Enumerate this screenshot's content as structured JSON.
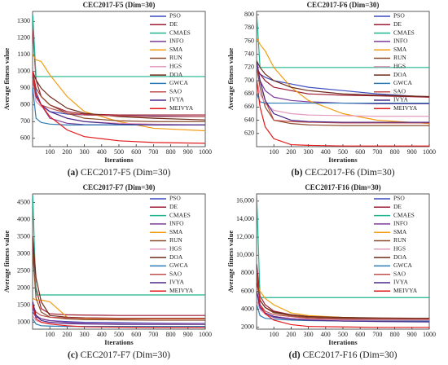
{
  "chart_data": [
    {
      "type": "line",
      "title": "CEC2017-F5 (Dim=30)",
      "xlabel": "Iterations",
      "ylabel": "Average fitness value",
      "caption_label": "(a)",
      "caption": "CEC2017-F5 (Dim=30)",
      "x": [
        1,
        20,
        50,
        100,
        200,
        300,
        500,
        700,
        1000
      ],
      "xlim": [
        0,
        1000
      ],
      "xticks": [
        100,
        200,
        300,
        400,
        500,
        600,
        700,
        800,
        900,
        1000
      ],
      "ylim": [
        550,
        1360
      ],
      "yticks": [
        600,
        700,
        800,
        900,
        1000,
        1100,
        1200,
        1300
      ],
      "series": [
        {
          "name": "PSO",
          "color": "#3b4cc0",
          "values": [
            1000,
            880,
            800,
            760,
            745,
            740,
            735,
            733,
            730
          ]
        },
        {
          "name": "DE",
          "color": "#9e1b32",
          "values": [
            1250,
            950,
            850,
            800,
            760,
            745,
            740,
            740,
            740
          ]
        },
        {
          "name": "CMAES",
          "color": "#1fb58f",
          "values": [
            1340,
            970,
            970,
            970,
            970,
            970,
            970,
            970,
            970
          ]
        },
        {
          "name": "INFO",
          "color": "#7d3c98",
          "values": [
            1000,
            850,
            800,
            720,
            690,
            682,
            680,
            680,
            680
          ]
        },
        {
          "name": "SMA",
          "color": "#f39c12",
          "values": [
            1100,
            1070,
            1060,
            980,
            850,
            760,
            700,
            660,
            645
          ]
        },
        {
          "name": "RUN",
          "color": "#8b4a2b",
          "values": [
            1000,
            900,
            850,
            800,
            750,
            720,
            705,
            700,
            700
          ]
        },
        {
          "name": "HGS",
          "color": "#e39abf",
          "values": [
            950,
            820,
            790,
            760,
            720,
            700,
            690,
            685,
            680
          ]
        },
        {
          "name": "DOA",
          "color": "#6e2c1c",
          "values": [
            1000,
            950,
            900,
            850,
            780,
            750,
            730,
            720,
            710
          ]
        },
        {
          "name": "GWCA",
          "color": "#2c7bb6",
          "values": [
            900,
            720,
            695,
            685,
            680,
            680,
            680,
            680,
            680
          ]
        },
        {
          "name": "SAO",
          "color": "#c0504d",
          "values": [
            950,
            850,
            800,
            780,
            750,
            740,
            735,
            730,
            730
          ]
        },
        {
          "name": "IVYA",
          "color": "#4b2a8a",
          "values": [
            1000,
            850,
            800,
            760,
            720,
            700,
            685,
            680,
            680
          ]
        },
        {
          "name": "MEIVYA",
          "color": "#e31a1c",
          "values": [
            1000,
            860,
            800,
            730,
            650,
            610,
            585,
            575,
            570
          ]
        }
      ]
    },
    {
      "type": "line",
      "title": "CEC2017-F6 (Dim=30)",
      "xlabel": "Iterations",
      "ylabel": "Average fitness value",
      "caption_label": "(b)",
      "caption": "CEC2017-F6 (Dim=30)",
      "x": [
        1,
        20,
        50,
        100,
        200,
        300,
        500,
        700,
        1000
      ],
      "xlim": [
        0,
        1000
      ],
      "xticks": [
        100,
        200,
        300,
        400,
        500,
        600,
        700,
        800,
        900,
        1000
      ],
      "ylim": [
        600,
        805
      ],
      "yticks": [
        620,
        640,
        660,
        680,
        700,
        720,
        740,
        760,
        780,
        800
      ],
      "series": [
        {
          "name": "PSO",
          "color": "#3b4cc0",
          "values": [
            720,
            710,
            705,
            700,
            695,
            690,
            685,
            680,
            675
          ]
        },
        {
          "name": "DE",
          "color": "#9e1b32",
          "values": [
            720,
            710,
            700,
            690,
            685,
            680,
            678,
            677,
            675
          ]
        },
        {
          "name": "CMAES",
          "color": "#1fb58f",
          "values": [
            800,
            720,
            720,
            720,
            720,
            720,
            720,
            720,
            720
          ]
        },
        {
          "name": "INFO",
          "color": "#7d3c98",
          "values": [
            720,
            700,
            685,
            675,
            670,
            668,
            666,
            665,
            665
          ]
        },
        {
          "name": "SMA",
          "color": "#f39c12",
          "values": [
            765,
            755,
            745,
            720,
            690,
            670,
            650,
            640,
            635
          ]
        },
        {
          "name": "RUN",
          "color": "#8b4a2b",
          "values": [
            720,
            690,
            660,
            640,
            635,
            633,
            632,
            632,
            632
          ]
        },
        {
          "name": "HGS",
          "color": "#e39abf",
          "values": [
            700,
            680,
            665,
            655,
            650,
            648,
            647,
            646,
            646
          ]
        },
        {
          "name": "DOA",
          "color": "#6e2c1c",
          "values": [
            730,
            720,
            710,
            700,
            690,
            685,
            680,
            678,
            676
          ]
        },
        {
          "name": "GWCA",
          "color": "#2c7bb6",
          "values": [
            680,
            668,
            666,
            666,
            666,
            666,
            666,
            666,
            666
          ]
        },
        {
          "name": "SAO",
          "color": "#c0504d",
          "values": [
            720,
            700,
            670,
            640,
            638,
            637,
            636,
            636,
            636
          ]
        },
        {
          "name": "IVYA",
          "color": "#4b2a8a",
          "values": [
            730,
            700,
            670,
            650,
            640,
            638,
            637,
            637,
            637
          ]
        },
        {
          "name": "MEIVYA",
          "color": "#e31a1c",
          "values": [
            700,
            660,
            630,
            612,
            603,
            602,
            601,
            601,
            601
          ]
        }
      ]
    },
    {
      "type": "line",
      "title": "CEC2017-F7 (Dim=30)",
      "xlabel": "Iterations",
      "ylabel": "Average fitness value",
      "caption_label": "(c)",
      "caption": "CEC2017-F7 (Dim=30)",
      "x": [
        1,
        20,
        50,
        100,
        200,
        300,
        500,
        700,
        1000
      ],
      "xlim": [
        0,
        1000
      ],
      "xticks": [
        100,
        200,
        300,
        400,
        500,
        600,
        700,
        800,
        900,
        1000
      ],
      "ylim": [
        800,
        4750
      ],
      "yticks": [
        1000,
        1500,
        2000,
        2500,
        3000,
        3500,
        4000,
        4500
      ],
      "series": [
        {
          "name": "PSO",
          "color": "#3b4cc0",
          "values": [
            1300,
            1150,
            1100,
            1050,
            1020,
            1000,
            990,
            980,
            970
          ]
        },
        {
          "name": "DE",
          "color": "#9e1b32",
          "values": [
            3300,
            2000,
            1400,
            1250,
            1220,
            1210,
            1200,
            1200,
            1200
          ]
        },
        {
          "name": "CMAES",
          "color": "#1fb58f",
          "values": [
            4700,
            1800,
            1800,
            1800,
            1800,
            1800,
            1800,
            1800,
            1800
          ]
        },
        {
          "name": "INFO",
          "color": "#7d3c98",
          "values": [
            1400,
            1200,
            1100,
            1050,
            1000,
            980,
            960,
            950,
            950
          ]
        },
        {
          "name": "SMA",
          "color": "#f39c12",
          "values": [
            1700,
            1650,
            1650,
            1600,
            1150,
            1100,
            1100,
            1100,
            1100
          ]
        },
        {
          "name": "RUN",
          "color": "#8b4a2b",
          "values": [
            3000,
            1700,
            1300,
            1150,
            1100,
            1080,
            1070,
            1060,
            1060
          ]
        },
        {
          "name": "HGS",
          "color": "#e39abf",
          "values": [
            1200,
            1050,
            1000,
            980,
            970,
            960,
            960,
            960,
            960
          ]
        },
        {
          "name": "DOA",
          "color": "#6e2c1c",
          "values": [
            3500,
            2300,
            1600,
            1200,
            1150,
            1130,
            1120,
            1120,
            1120
          ]
        },
        {
          "name": "GWCA",
          "color": "#2c7bb6",
          "values": [
            1100,
            950,
            900,
            890,
            880,
            880,
            880,
            880,
            880
          ]
        },
        {
          "name": "SAO",
          "color": "#c0504d",
          "values": [
            1500,
            1300,
            1200,
            1150,
            1130,
            1120,
            1110,
            1110,
            1110
          ]
        },
        {
          "name": "IVYA",
          "color": "#4b2a8a",
          "values": [
            1600,
            1200,
            1050,
            1000,
            960,
            950,
            940,
            940,
            940
          ]
        },
        {
          "name": "MEIVYA",
          "color": "#e31a1c",
          "values": [
            1500,
            1100,
            1000,
            950,
            900,
            870,
            860,
            850,
            850
          ]
        }
      ]
    },
    {
      "type": "line",
      "title": "CEC2017-F16 (Dim=30)",
      "xlabel": "Iterations",
      "ylabel": "Average fitness value",
      "caption_label": "(d)",
      "caption": "CEC2017-F16 (Dim=30)",
      "x": [
        1,
        20,
        50,
        100,
        200,
        300,
        500,
        700,
        1000
      ],
      "xlim": [
        0,
        1000
      ],
      "xticks": [
        100,
        200,
        300,
        400,
        500,
        600,
        700,
        800,
        900,
        1000
      ],
      "ylim": [
        1800,
        16800
      ],
      "yticks": [
        {
          "value": 2000,
          "label": "2000"
        },
        {
          "value": 4000,
          "label": "4000"
        },
        {
          "value": 6000,
          "label": "6000"
        },
        {
          "value": 8000,
          "label": "8000"
        },
        {
          "value": 10000,
          "label": "10,000"
        },
        {
          "value": 12000,
          "label": "12,000"
        },
        {
          "value": 14000,
          "label": "14,000"
        },
        {
          "value": 16000,
          "label": "16,000"
        }
      ],
      "series": [
        {
          "name": "PSO",
          "color": "#3b4cc0",
          "values": [
            6000,
            4000,
            3500,
            3200,
            3000,
            2900,
            2850,
            2800,
            2800
          ]
        },
        {
          "name": "DE",
          "color": "#9e1b32",
          "values": [
            9000,
            5500,
            4500,
            3800,
            3400,
            3200,
            3100,
            3000,
            3000
          ]
        },
        {
          "name": "CMAES",
          "color": "#1fb58f",
          "values": [
            16500,
            5300,
            5300,
            5300,
            5300,
            5300,
            5300,
            5300,
            5300
          ]
        },
        {
          "name": "INFO",
          "color": "#7d3c98",
          "values": [
            5000,
            4000,
            3500,
            3100,
            2900,
            2800,
            2700,
            2700,
            2700
          ]
        },
        {
          "name": "SMA",
          "color": "#f39c12",
          "values": [
            7000,
            6000,
            5200,
            4500,
            3600,
            3300,
            3100,
            3000,
            2950
          ]
        },
        {
          "name": "RUN",
          "color": "#8b4a2b",
          "values": [
            8000,
            5000,
            4200,
            3600,
            3300,
            3100,
            3000,
            2950,
            2900
          ]
        },
        {
          "name": "HGS",
          "color": "#e39abf",
          "values": [
            5000,
            4000,
            3500,
            3200,
            3000,
            2900,
            2800,
            2800,
            2800
          ]
        },
        {
          "name": "DOA",
          "color": "#6e2c1c",
          "values": [
            7000,
            5000,
            4200,
            3700,
            3400,
            3200,
            3100,
            3050,
            3000
          ]
        },
        {
          "name": "GWCA",
          "color": "#2c7bb6",
          "values": [
            4500,
            3300,
            3000,
            2900,
            2800,
            2750,
            2700,
            2700,
            2700
          ]
        },
        {
          "name": "SAO",
          "color": "#c0504d",
          "values": [
            6000,
            4500,
            3800,
            3400,
            3200,
            3000,
            2900,
            2900,
            2900
          ]
        },
        {
          "name": "IVYA",
          "color": "#4b2a8a",
          "values": [
            6000,
            4200,
            3600,
            3200,
            2900,
            2800,
            2700,
            2650,
            2600
          ]
        },
        {
          "name": "MEIVYA",
          "color": "#e31a1c",
          "values": [
            8000,
            4500,
            3500,
            2800,
            2300,
            2100,
            2050,
            2000,
            2000
          ]
        }
      ]
    }
  ]
}
